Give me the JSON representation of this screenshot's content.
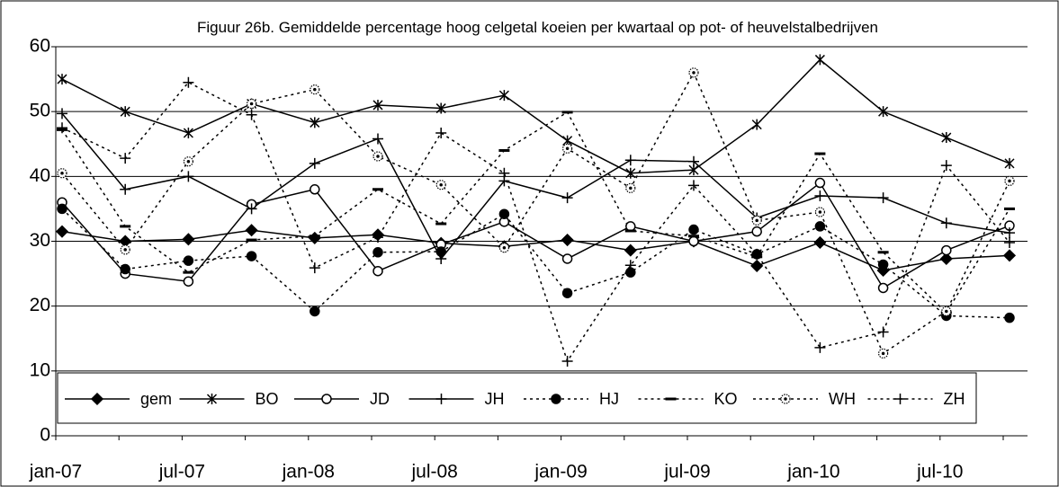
{
  "chart_data": {
    "type": "line",
    "title": "Figuur 26b. Gemiddelde percentage hoog celgetal koeien per kwartaal op pot- of heuvelstalbedrijven",
    "categories": [
      "jan-07",
      null,
      "jul-07",
      null,
      "jan-08",
      null,
      "jul-08",
      null,
      "jan-09",
      null,
      "jul-09",
      null,
      "jan-10",
      null,
      "jul-10",
      null
    ],
    "ylim": [
      0,
      60
    ],
    "yticks": [
      0,
      10,
      20,
      30,
      40,
      50,
      60
    ],
    "grid": true,
    "legend": "bottom",
    "series": [
      {
        "name": "gem",
        "color": "#000000",
        "marker": "diamond",
        "dashed": false,
        "values": [
          31.5,
          30,
          30.3,
          31.7,
          30.5,
          31,
          29.7,
          29.2,
          30.2,
          28.6,
          30,
          26.2,
          29.8,
          25.5,
          27.3,
          27.8
        ]
      },
      {
        "name": "BO",
        "color": "#000000",
        "marker": "asterisk",
        "dashed": false,
        "values": [
          55,
          50,
          46.7,
          51.2,
          48.3,
          51,
          50.5,
          52.5,
          45.5,
          40.5,
          41,
          48,
          58,
          50,
          46,
          42
        ]
      },
      {
        "name": "JD",
        "color": "#000000",
        "marker": "open-circle",
        "dashed": false,
        "values": [
          36,
          25,
          23.8,
          35.7,
          38,
          25.4,
          29.5,
          33,
          27.3,
          32.3,
          30,
          31.5,
          39,
          22.8,
          28.6,
          32.4
        ]
      },
      {
        "name": "JH",
        "color": "#000000",
        "marker": "plus",
        "dashed": false,
        "values": [
          49.7,
          38,
          40,
          35,
          42,
          45.8,
          27.3,
          39.3,
          36.7,
          42.5,
          42.3,
          33.6,
          37,
          36.7,
          32.8,
          31.3
        ]
      },
      {
        "name": "HJ",
        "color": "#000000",
        "marker": "filled-circle",
        "dashed": true,
        "values": [
          35,
          25.7,
          27,
          27.7,
          19.2,
          28.3,
          28.4,
          34.2,
          22,
          25.2,
          31.8,
          28,
          32.3,
          26.4,
          18.5,
          18.2
        ]
      },
      {
        "name": "KO",
        "color": "#000000",
        "marker": "dash",
        "dashed": true,
        "values": [
          47.2,
          32.3,
          25.2,
          30.2,
          30.8,
          38,
          32.7,
          44,
          49.9,
          31.6,
          30.8,
          27.6,
          43.5,
          28.3,
          19,
          35
        ]
      },
      {
        "name": "WH",
        "color": "#000000",
        "marker": "dot-circle",
        "dashed": true,
        "values": [
          40.5,
          28.7,
          42.3,
          51.2,
          53.4,
          43.1,
          38.7,
          29,
          44.3,
          38.2,
          56,
          33.2,
          34.5,
          12.7,
          19.2,
          39.3
        ]
      },
      {
        "name": "ZH",
        "color": "#000000",
        "marker": "plus",
        "dashed": true,
        "values": [
          47.5,
          42.8,
          54.5,
          49.5,
          25.9,
          30.6,
          46.7,
          40.5,
          11.5,
          26.3,
          38.6,
          28,
          13.6,
          16,
          41.7,
          29.8
        ]
      }
    ]
  }
}
